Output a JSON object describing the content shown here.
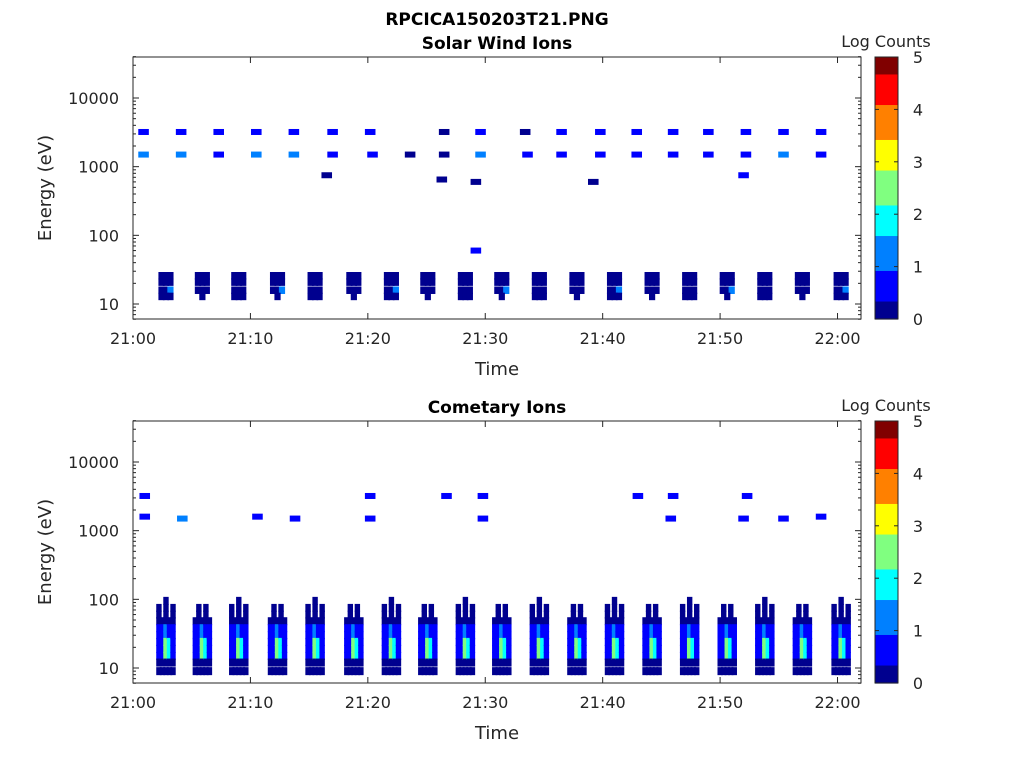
{
  "figure": {
    "title": "RPCICA150203T21.PNG"
  },
  "colormap": [
    "#00008f",
    "#0000ff",
    "#0080ff",
    "#00ffff",
    "#80ff80",
    "#ffff00",
    "#ff8000",
    "#ff0000",
    "#800000"
  ],
  "chart_data": [
    {
      "type": "heatmap",
      "title": "Solar Wind Ions",
      "xlabel": "Time",
      "ylabel": "Energy (eV)",
      "x_ticks": [
        "21:00",
        "21:10",
        "21:20",
        "21:30",
        "21:40",
        "21:50",
        "22:00"
      ],
      "xlim_minutes": [
        0,
        62
      ],
      "y_scale": "log",
      "y_ticks": [
        "10",
        "100",
        "1000",
        "10000"
      ],
      "ylim": [
        6,
        45000
      ],
      "colorbar": {
        "label": "Log Counts",
        "ticks": [
          "0",
          "1",
          "2",
          "3",
          "4",
          "5"
        ],
        "range": [
          0,
          5
        ]
      },
      "cells": [
        {
          "t": 0.9,
          "e": 3200,
          "v": 0.9
        },
        {
          "t": 0.9,
          "e": 1500,
          "v": 1.3
        },
        {
          "t": 4.1,
          "e": 3200,
          "v": 0.8
        },
        {
          "t": 4.1,
          "e": 1500,
          "v": 1.1
        },
        {
          "t": 7.3,
          "e": 3200,
          "v": 0.5
        },
        {
          "t": 7.3,
          "e": 1500,
          "v": 0.6
        },
        {
          "t": 10.5,
          "e": 3200,
          "v": 0.9
        },
        {
          "t": 10.5,
          "e": 1500,
          "v": 1.2
        },
        {
          "t": 13.7,
          "e": 3200,
          "v": 0.8
        },
        {
          "t": 13.7,
          "e": 1500,
          "v": 1.4
        },
        {
          "t": 17.0,
          "e": 3200,
          "v": 0.6
        },
        {
          "t": 17.0,
          "e": 1500,
          "v": 0.5
        },
        {
          "t": 20.2,
          "e": 3200,
          "v": 0.7
        },
        {
          "t": 20.4,
          "e": 1500,
          "v": 0.4
        },
        {
          "t": 16.5,
          "e": 750,
          "v": 0.3
        },
        {
          "t": 23.6,
          "e": 1500,
          "v": 0.3
        },
        {
          "t": 26.5,
          "e": 3200,
          "v": 0.3
        },
        {
          "t": 26.5,
          "e": 1500,
          "v": 0.2
        },
        {
          "t": 26.3,
          "e": 650,
          "v": 0.3
        },
        {
          "t": 29.6,
          "e": 3200,
          "v": 0.6
        },
        {
          "t": 29.6,
          "e": 1500,
          "v": 1.2
        },
        {
          "t": 29.2,
          "e": 600,
          "v": 0.2
        },
        {
          "t": 33.4,
          "e": 3200,
          "v": 0.3
        },
        {
          "t": 33.6,
          "e": 1500,
          "v": 0.5
        },
        {
          "t": 36.5,
          "e": 3200,
          "v": 0.4
        },
        {
          "t": 36.5,
          "e": 1500,
          "v": 0.8
        },
        {
          "t": 39.2,
          "e": 600,
          "v": 0.3
        },
        {
          "t": 39.8,
          "e": 3200,
          "v": 0.5
        },
        {
          "t": 39.8,
          "e": 1500,
          "v": 0.4
        },
        {
          "t": 42.9,
          "e": 3200,
          "v": 0.7
        },
        {
          "t": 42.9,
          "e": 1500,
          "v": 0.6
        },
        {
          "t": 46.0,
          "e": 3200,
          "v": 0.8
        },
        {
          "t": 46.0,
          "e": 1500,
          "v": 0.5
        },
        {
          "t": 49.0,
          "e": 3200,
          "v": 0.6
        },
        {
          "t": 49.0,
          "e": 1500,
          "v": 0.7
        },
        {
          "t": 52.2,
          "e": 3200,
          "v": 0.5
        },
        {
          "t": 52.2,
          "e": 1500,
          "v": 0.6
        },
        {
          "t": 52.0,
          "e": 750,
          "v": 0.4
        },
        {
          "t": 55.4,
          "e": 3200,
          "v": 0.6
        },
        {
          "t": 55.4,
          "e": 1500,
          "v": 1.3
        },
        {
          "t": 58.6,
          "e": 3200,
          "v": 0.6
        },
        {
          "t": 58.6,
          "e": 1500,
          "v": 0.9
        },
        {
          "t": 29.2,
          "e": 60,
          "v": 0.4
        }
      ]
    },
    {
      "type": "heatmap",
      "title": "Cometary Ions",
      "xlabel": "Time",
      "ylabel": "Energy (eV)",
      "x_ticks": [
        "21:00",
        "21:10",
        "21:20",
        "21:30",
        "21:40",
        "21:50",
        "22:00"
      ],
      "xlim_minutes": [
        0,
        62
      ],
      "y_scale": "log",
      "y_ticks": [
        "10",
        "100",
        "1000",
        "10000"
      ],
      "ylim": [
        6,
        45000
      ],
      "colorbar": {
        "label": "Log Counts",
        "ticks": [
          "0",
          "1",
          "2",
          "3",
          "4",
          "5"
        ],
        "range": [
          0,
          5
        ]
      },
      "cells": [
        {
          "t": 1.0,
          "e": 3200,
          "v": 0.8
        },
        {
          "t": 1.0,
          "e": 1600,
          "v": 0.9
        },
        {
          "t": 4.2,
          "e": 1500,
          "v": 1.0
        },
        {
          "t": 10.6,
          "e": 1600,
          "v": 0.8
        },
        {
          "t": 13.8,
          "e": 1500,
          "v": 0.7
        },
        {
          "t": 20.2,
          "e": 3200,
          "v": 0.5
        },
        {
          "t": 20.2,
          "e": 1500,
          "v": 0.9
        },
        {
          "t": 26.7,
          "e": 3200,
          "v": 0.4
        },
        {
          "t": 29.8,
          "e": 3200,
          "v": 0.5
        },
        {
          "t": 29.8,
          "e": 1500,
          "v": 0.8
        },
        {
          "t": 43.0,
          "e": 3200,
          "v": 0.4
        },
        {
          "t": 46.0,
          "e": 3200,
          "v": 0.5
        },
        {
          "t": 45.8,
          "e": 1500,
          "v": 0.5
        },
        {
          "t": 52.3,
          "e": 3200,
          "v": 0.5
        },
        {
          "t": 52.0,
          "e": 1500,
          "v": 0.6
        },
        {
          "t": 55.4,
          "e": 1500,
          "v": 0.5
        },
        {
          "t": 58.6,
          "e": 1600,
          "v": 0.6
        }
      ]
    }
  ]
}
